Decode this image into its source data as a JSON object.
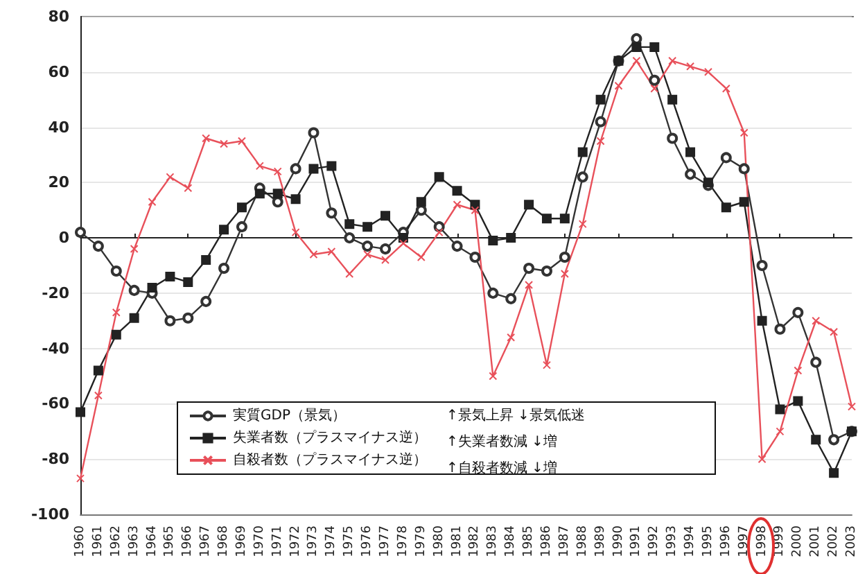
{
  "chart_data": {
    "type": "line",
    "categories": [
      "1960",
      "1961",
      "1962",
      "1963",
      "1964",
      "1965",
      "1966",
      "1967",
      "1968",
      "1969",
      "1970",
      "1971",
      "1972",
      "1973",
      "1974",
      "1975",
      "1976",
      "1977",
      "1978",
      "1979",
      "1980",
      "1981",
      "1982",
      "1983",
      "1984",
      "1985",
      "1986",
      "1987",
      "1988",
      "1989",
      "1990",
      "1991",
      "1992",
      "1993",
      "1994",
      "1995",
      "1996",
      "1997",
      "1998",
      "1999",
      "2000",
      "2001",
      "2002",
      "2003"
    ],
    "series": [
      {
        "name": "実質GDP（景気）",
        "color": "#333333",
        "marker": "circle",
        "values": [
          2,
          -3,
          -12,
          -19,
          -20,
          -30,
          -29,
          -23,
          -11,
          4,
          18,
          13,
          25,
          38,
          9,
          0,
          -3,
          -4,
          2,
          10,
          4,
          -3,
          -7,
          -20,
          -22,
          -11,
          -12,
          -7,
          22,
          42,
          64,
          72,
          57,
          36,
          23,
          19,
          29,
          25,
          -10,
          -33,
          -27,
          -45,
          -73,
          -70
        ]
      },
      {
        "name": "失業者数（プラスマイナス逆）",
        "color": "#222222",
        "marker": "square",
        "values": [
          -63,
          -48,
          -35,
          -29,
          -18,
          -14,
          -16,
          -8,
          3,
          11,
          16,
          16,
          14,
          25,
          26,
          5,
          4,
          8,
          0,
          13,
          22,
          17,
          12,
          -1,
          0,
          12,
          7,
          7,
          31,
          50,
          64,
          69,
          69,
          50,
          31,
          20,
          11,
          13,
          -30,
          -62,
          -59,
          -73,
          -85,
          -70
        ]
      },
      {
        "name": "自殺者数（プラスマイナス逆）",
        "color": "#e8505a",
        "marker": "cross",
        "values": [
          -87,
          -57,
          -27,
          -4,
          13,
          22,
          18,
          36,
          34,
          35,
          26,
          24,
          2,
          -6,
          -5,
          -13,
          -6,
          -8,
          -2,
          -7,
          2,
          12,
          10,
          -50,
          -36,
          -17,
          -46,
          -13,
          5,
          35,
          55,
          64,
          54,
          64,
          62,
          60,
          54,
          38,
          -80,
          -70,
          -48,
          -30,
          -34,
          -61
        ]
      }
    ],
    "ylim": [
      -100,
      80
    ],
    "yticks": [
      -100,
      -80,
      -60,
      -40,
      -20,
      0,
      20,
      40,
      60,
      80
    ],
    "grid": "y",
    "legend": "bottom",
    "annotations": [
      "↑景気上昇 ↓景気低迷",
      "↑失業者数減 ↓増",
      "↑自殺者数減 ↓増"
    ]
  }
}
